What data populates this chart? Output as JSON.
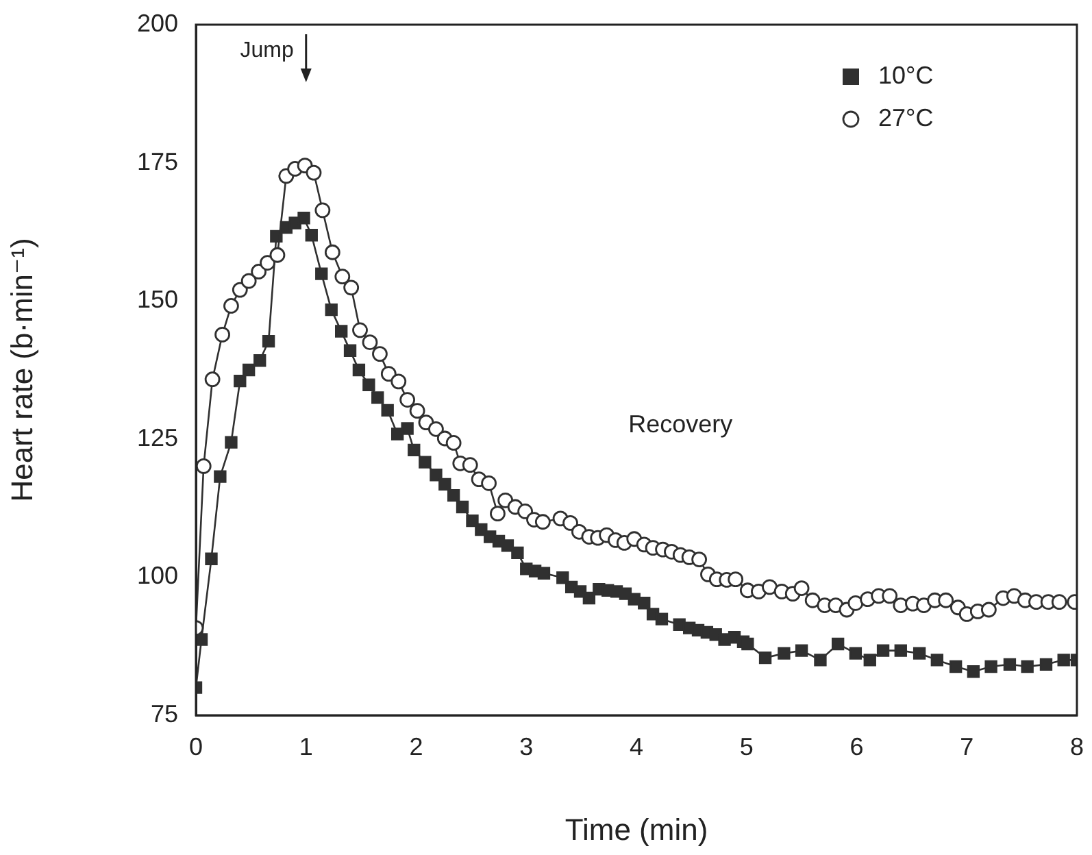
{
  "chart_data": {
    "type": "line",
    "xlabel": "Time (min)",
    "ylabel": "Heart rate (b·min⁻¹)",
    "xlim": [
      0,
      8
    ],
    "xticks": [
      0,
      1,
      2,
      3,
      4,
      5,
      6,
      7,
      8
    ],
    "ylim": [
      75,
      200
    ],
    "yticks": [
      75,
      100,
      125,
      150,
      175,
      200
    ],
    "grid": false,
    "legend": "top right",
    "line_style": "solid",
    "annotations": [
      "Jump",
      "Recovery"
    ],
    "series": [
      {
        "name": "10°C",
        "color": "#303030",
        "marker": "square",
        "x": [
          0,
          0.05,
          0.14,
          0.22,
          0.32,
          0.4,
          0.48,
          0.58,
          0.66,
          0.73,
          0.82,
          0.9,
          0.98,
          1.05,
          1.14,
          1.23,
          1.32,
          1.4,
          1.48,
          1.57,
          1.65,
          1.74,
          1.83,
          1.92,
          1.98,
          2.08,
          2.18,
          2.26,
          2.34,
          2.42,
          2.51,
          2.59,
          2.67,
          2.75,
          2.83,
          2.92,
          3,
          3.08,
          3.16,
          3.33,
          3.41,
          3.49,
          3.57,
          3.66,
          3.74,
          3.82,
          3.9,
          3.98,
          4.07,
          4.15,
          4.23,
          4.39,
          4.48,
          4.56,
          4.64,
          4.72,
          4.8,
          4.89,
          4.97,
          5.01,
          5.17,
          5.34,
          5.5,
          5.67,
          5.83,
          5.99,
          6.12,
          6.24,
          6.4,
          6.57,
          6.73,
          6.9,
          7.06,
          7.22,
          7.39,
          7.55,
          7.72,
          7.88,
          8
        ],
        "values": [
          80,
          88.7,
          103.3,
          118.2,
          124.4,
          135.5,
          137.5,
          139.2,
          142.7,
          161.7,
          163.3,
          164.1,
          165,
          161.9,
          154.9,
          148.4,
          144.5,
          141,
          137.5,
          134.8,
          132.5,
          130.2,
          125.9,
          126.9,
          123,
          120.8,
          118.5,
          116.8,
          114.8,
          112.7,
          110.2,
          108.6,
          107.3,
          106.5,
          105.7,
          104.4,
          101.5,
          101.1,
          100.7,
          99.9,
          98.2,
          97.4,
          96.2,
          97.8,
          97.6,
          97.4,
          97,
          96,
          95.3,
          93.3,
          92.4,
          91.4,
          90.8,
          90.4,
          90,
          89.6,
          88.7,
          89.1,
          88.3,
          87.9,
          85.4,
          86.2,
          86.7,
          85,
          87.9,
          86.2,
          85,
          86.7,
          86.7,
          86.2,
          85,
          83.8,
          82.9,
          83.8,
          84.2,
          83.8,
          84.2,
          85,
          85
        ]
      },
      {
        "name": "27°C",
        "color": "#303030",
        "marker": "circle",
        "x": [
          0,
          0.07,
          0.15,
          0.24,
          0.32,
          0.4,
          0.48,
          0.57,
          0.65,
          0.74,
          0.82,
          0.9,
          0.99,
          1.07,
          1.15,
          1.24,
          1.33,
          1.41,
          1.49,
          1.58,
          1.67,
          1.75,
          1.84,
          1.92,
          2.01,
          2.09,
          2.18,
          2.26,
          2.34,
          2.4,
          2.49,
          2.57,
          2.66,
          2.74,
          2.81,
          2.9,
          2.99,
          3.07,
          3.15,
          3.31,
          3.4,
          3.48,
          3.57,
          3.65,
          3.73,
          3.81,
          3.89,
          3.98,
          4.07,
          4.15,
          4.24,
          4.32,
          4.4,
          4.48,
          4.57,
          4.65,
          4.73,
          4.82,
          4.9,
          5.01,
          5.11,
          5.21,
          5.32,
          5.42,
          5.5,
          5.6,
          5.71,
          5.81,
          5.91,
          5.99,
          6.1,
          6.2,
          6.3,
          6.4,
          6.51,
          6.61,
          6.71,
          6.81,
          6.92,
          7,
          7.1,
          7.2,
          7.33,
          7.43,
          7.53,
          7.63,
          7.74,
          7.84,
          7.98
        ],
        "values": [
          90.8,
          120.1,
          135.8,
          143.9,
          149.1,
          152,
          153.6,
          155.3,
          156.9,
          158.3,
          172.6,
          173.9,
          174.5,
          173.2,
          166.4,
          158.8,
          154.4,
          152.4,
          144.7,
          142.5,
          140.4,
          136.8,
          135.4,
          132.1,
          130.1,
          128,
          126.8,
          125.1,
          124.3,
          120.6,
          120.3,
          117.7,
          117,
          111.5,
          113.9,
          112.7,
          111.9,
          110.4,
          110,
          110.6,
          109.8,
          108.2,
          107.3,
          107.1,
          107.6,
          106.7,
          106.2,
          106.9,
          105.9,
          105.3,
          105,
          104.6,
          104,
          103.6,
          103.2,
          100.5,
          99.6,
          99.5,
          99.6,
          97.6,
          97.4,
          98.2,
          97.4,
          97,
          98,
          95.8,
          94.9,
          94.9,
          94.1,
          95.3,
          96,
          96.6,
          96.6,
          94.9,
          95.2,
          94.9,
          95.8,
          95.8,
          94.5,
          93.3,
          93.8,
          94.1,
          96.2,
          96.6,
          95.8,
          95.5,
          95.5,
          95.5,
          95.5
        ]
      }
    ]
  }
}
